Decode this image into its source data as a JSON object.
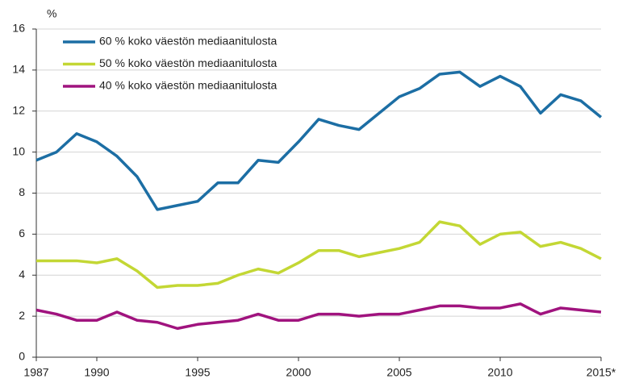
{
  "chart_data": {
    "type": "line",
    "y_label": "%",
    "x": [
      1987,
      1988,
      1989,
      1990,
      1991,
      1992,
      1993,
      1994,
      1995,
      1996,
      1997,
      1998,
      1999,
      2000,
      2001,
      2002,
      2003,
      2004,
      2005,
      2006,
      2007,
      2008,
      2009,
      2010,
      2011,
      2012,
      2013,
      2014,
      2015
    ],
    "series": [
      {
        "name": "60 % koko väestön mediaanitulosta",
        "color": "#1c6ea4",
        "values": [
          9.6,
          10.0,
          10.9,
          10.5,
          9.8,
          8.8,
          7.2,
          7.4,
          7.6,
          8.5,
          8.5,
          9.6,
          9.5,
          10.5,
          11.6,
          11.3,
          11.1,
          11.9,
          12.7,
          13.1,
          13.8,
          13.9,
          13.2,
          13.7,
          13.2,
          11.9,
          12.8,
          12.5,
          11.7
        ]
      },
      {
        "name": "50 % koko väestön mediaanitulosta",
        "color": "#c3d734",
        "values": [
          4.7,
          4.7,
          4.7,
          4.6,
          4.8,
          4.2,
          3.4,
          3.5,
          3.5,
          3.6,
          4.0,
          4.3,
          4.1,
          4.6,
          5.2,
          5.2,
          4.9,
          5.1,
          5.3,
          5.6,
          6.6,
          6.4,
          5.5,
          6.0,
          6.1,
          5.4,
          5.6,
          5.3,
          4.8
        ]
      },
      {
        "name": "40 % koko väestön mediaanitulosta",
        "color": "#a0137e",
        "values": [
          2.3,
          2.1,
          1.8,
          1.8,
          2.2,
          1.8,
          1.7,
          1.4,
          1.6,
          1.7,
          1.8,
          2.1,
          1.8,
          1.8,
          2.1,
          2.1,
          2.0,
          2.1,
          2.1,
          2.3,
          2.5,
          2.5,
          2.4,
          2.4,
          2.6,
          2.1,
          2.4,
          2.3,
          2.2
        ]
      }
    ],
    "xlim": [
      1987,
      2015
    ],
    "xticks": [
      1987,
      1990,
      1995,
      2000,
      2005,
      2010,
      {
        "value": 2015,
        "label": "2015*"
      }
    ],
    "ylim": [
      0,
      16
    ],
    "yticks": [
      0,
      2,
      4,
      6,
      8,
      10,
      12,
      14,
      16
    ],
    "grid": true,
    "legend": "upper-left"
  }
}
